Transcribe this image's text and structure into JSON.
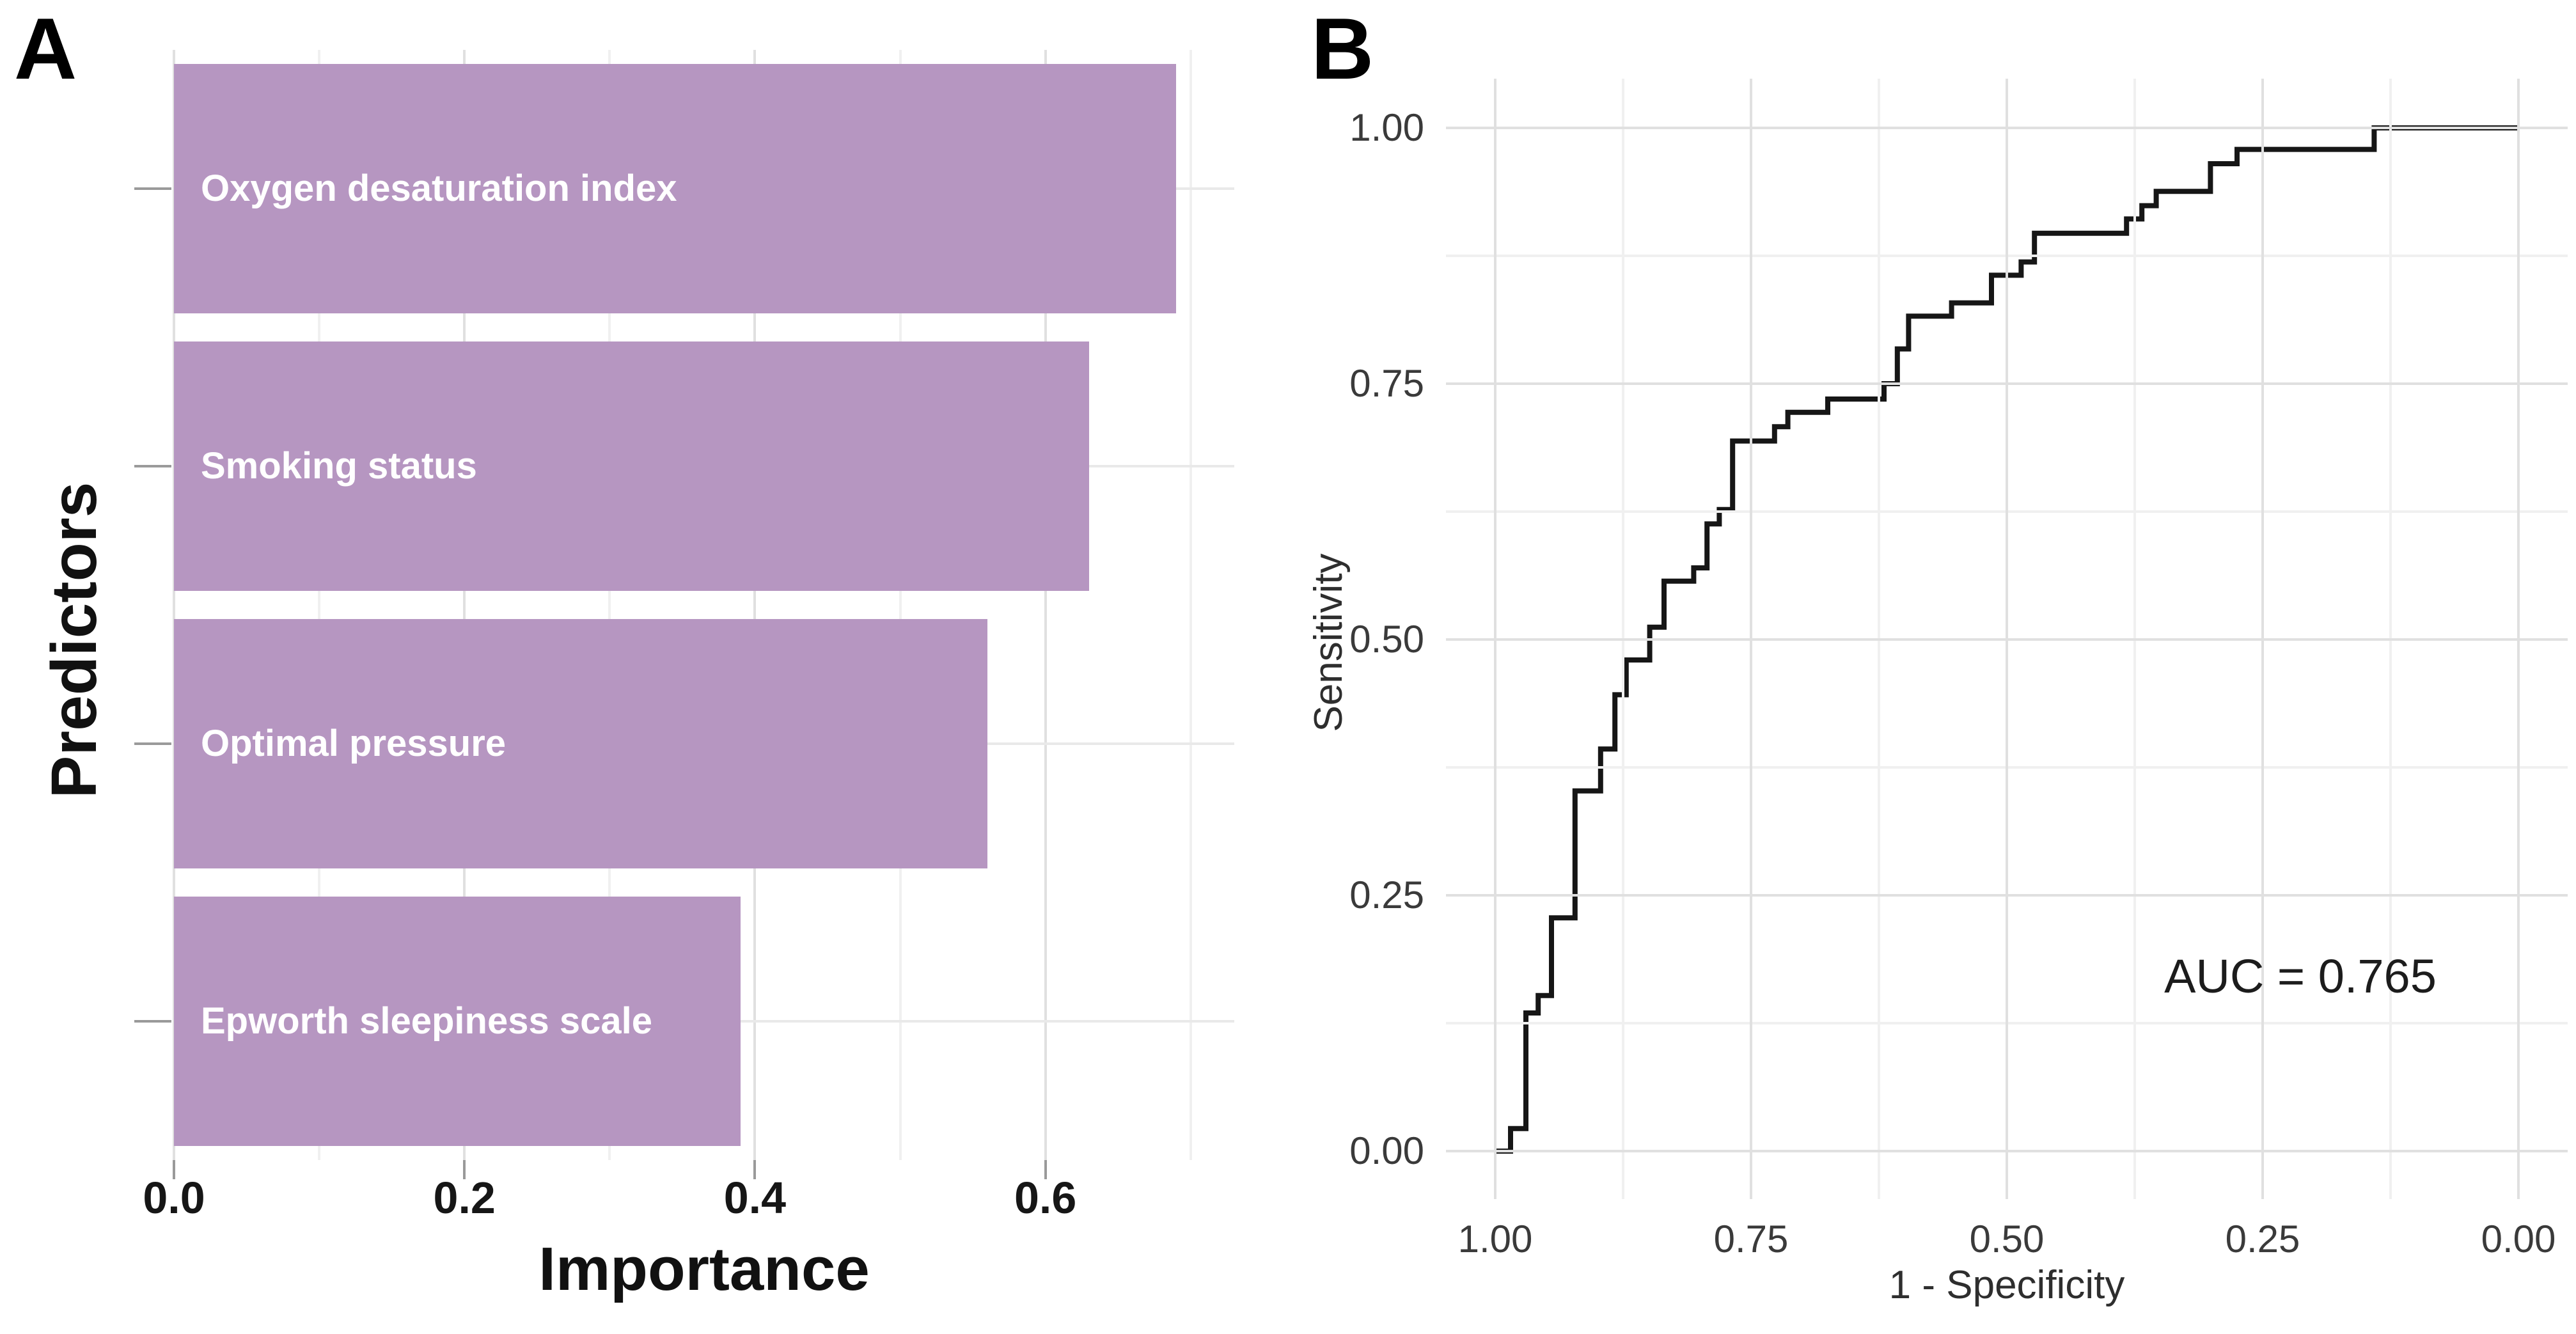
{
  "figure": {
    "panel_a_label": "A",
    "panel_b_label": "B",
    "background_color": "#ffffff"
  },
  "chart_data": [
    {
      "type": "bar",
      "panel": "A",
      "orientation": "horizontal",
      "title": "",
      "xlabel": "Importance",
      "ylabel": "Predictors",
      "categories": [
        "Oxygen desaturation index",
        "Smoking status",
        "Optimal pressure",
        "Epworth sleepiness scale"
      ],
      "values": [
        0.69,
        0.63,
        0.56,
        0.39
      ],
      "x_tick_labels": [
        "0.0",
        "0.2",
        "0.4",
        "0.6"
      ],
      "x_tick_values": [
        0.0,
        0.2,
        0.4,
        0.6
      ],
      "x_minor_gridlines": [
        0.1,
        0.3,
        0.5,
        0.7
      ],
      "xlim": [
        0,
        0.73
      ],
      "grid": true,
      "legend": "none",
      "bar_color": "#b696c1",
      "bar_label_color": "#ffffff",
      "grid_major_color": "#e0e0e0",
      "grid_minor_color": "#f0f0f0",
      "axis_text_color": "#161616"
    },
    {
      "type": "line",
      "subtype": "roc-step-curve",
      "panel": "B",
      "title": "",
      "xlabel": "1 - Specificity",
      "ylabel": "Sensitivity",
      "annotation": "AUC = 0.765",
      "x_axis_reversed": true,
      "x_tick_labels": [
        "1.00",
        "0.75",
        "0.50",
        "0.25",
        "0.00"
      ],
      "x_tick_values": [
        1.0,
        0.75,
        0.5,
        0.25,
        0.0
      ],
      "y_tick_labels": [
        "0.00",
        "0.25",
        "0.50",
        "0.75",
        "1.00"
      ],
      "y_tick_values": [
        0.0,
        0.25,
        0.5,
        0.75,
        1.0
      ],
      "x_minor_gridlines": [
        0.875,
        0.625,
        0.375,
        0.125
      ],
      "y_minor_gridlines": [
        0.125,
        0.375,
        0.625,
        0.875
      ],
      "xlim": [
        1.048,
        -0.048
      ],
      "ylim": [
        -0.048,
        1.048
      ],
      "grid": true,
      "legend": "none",
      "line_color": "#161616",
      "grid_major_color": "#e0e0e0",
      "grid_minor_color": "#f0f0f0",
      "axis_text_color": "#3a3a3a",
      "series": [
        {
          "name": "ROC curve",
          "points_x_1_minus_specificity_y_sensitivity": [
            [
              1.0,
              0.0
            ],
            [
              0.985,
              0.0
            ],
            [
              0.985,
              0.022
            ],
            [
              0.97,
              0.022
            ],
            [
              0.97,
              0.135
            ],
            [
              0.958,
              0.135
            ],
            [
              0.958,
              0.152
            ],
            [
              0.945,
              0.152
            ],
            [
              0.945,
              0.228
            ],
            [
              0.922,
              0.228
            ],
            [
              0.922,
              0.352
            ],
            [
              0.897,
              0.352
            ],
            [
              0.897,
              0.393
            ],
            [
              0.883,
              0.393
            ],
            [
              0.883,
              0.446
            ],
            [
              0.872,
              0.446
            ],
            [
              0.872,
              0.48
            ],
            [
              0.849,
              0.48
            ],
            [
              0.849,
              0.512
            ],
            [
              0.835,
              0.512
            ],
            [
              0.835,
              0.557
            ],
            [
              0.806,
              0.557
            ],
            [
              0.806,
              0.57
            ],
            [
              0.793,
              0.57
            ],
            [
              0.793,
              0.613
            ],
            [
              0.781,
              0.613
            ],
            [
              0.781,
              0.627
            ],
            [
              0.768,
              0.627
            ],
            [
              0.768,
              0.694
            ],
            [
              0.727,
              0.694
            ],
            [
              0.727,
              0.708
            ],
            [
              0.714,
              0.708
            ],
            [
              0.714,
              0.722
            ],
            [
              0.675,
              0.722
            ],
            [
              0.675,
              0.735
            ],
            [
              0.62,
              0.735
            ],
            [
              0.62,
              0.75
            ],
            [
              0.607,
              0.75
            ],
            [
              0.607,
              0.784
            ],
            [
              0.596,
              0.784
            ],
            [
              0.596,
              0.816
            ],
            [
              0.554,
              0.816
            ],
            [
              0.554,
              0.829
            ],
            [
              0.515,
              0.829
            ],
            [
              0.515,
              0.856
            ],
            [
              0.486,
              0.856
            ],
            [
              0.486,
              0.869
            ],
            [
              0.473,
              0.869
            ],
            [
              0.473,
              0.897
            ],
            [
              0.383,
              0.897
            ],
            [
              0.383,
              0.911
            ],
            [
              0.368,
              0.911
            ],
            [
              0.368,
              0.924
            ],
            [
              0.354,
              0.924
            ],
            [
              0.354,
              0.938
            ],
            [
              0.301,
              0.938
            ],
            [
              0.301,
              0.965
            ],
            [
              0.275,
              0.965
            ],
            [
              0.275,
              0.979
            ],
            [
              0.141,
              0.979
            ],
            [
              0.141,
              1.0
            ],
            [
              0.0,
              1.0
            ]
          ]
        }
      ]
    }
  ]
}
